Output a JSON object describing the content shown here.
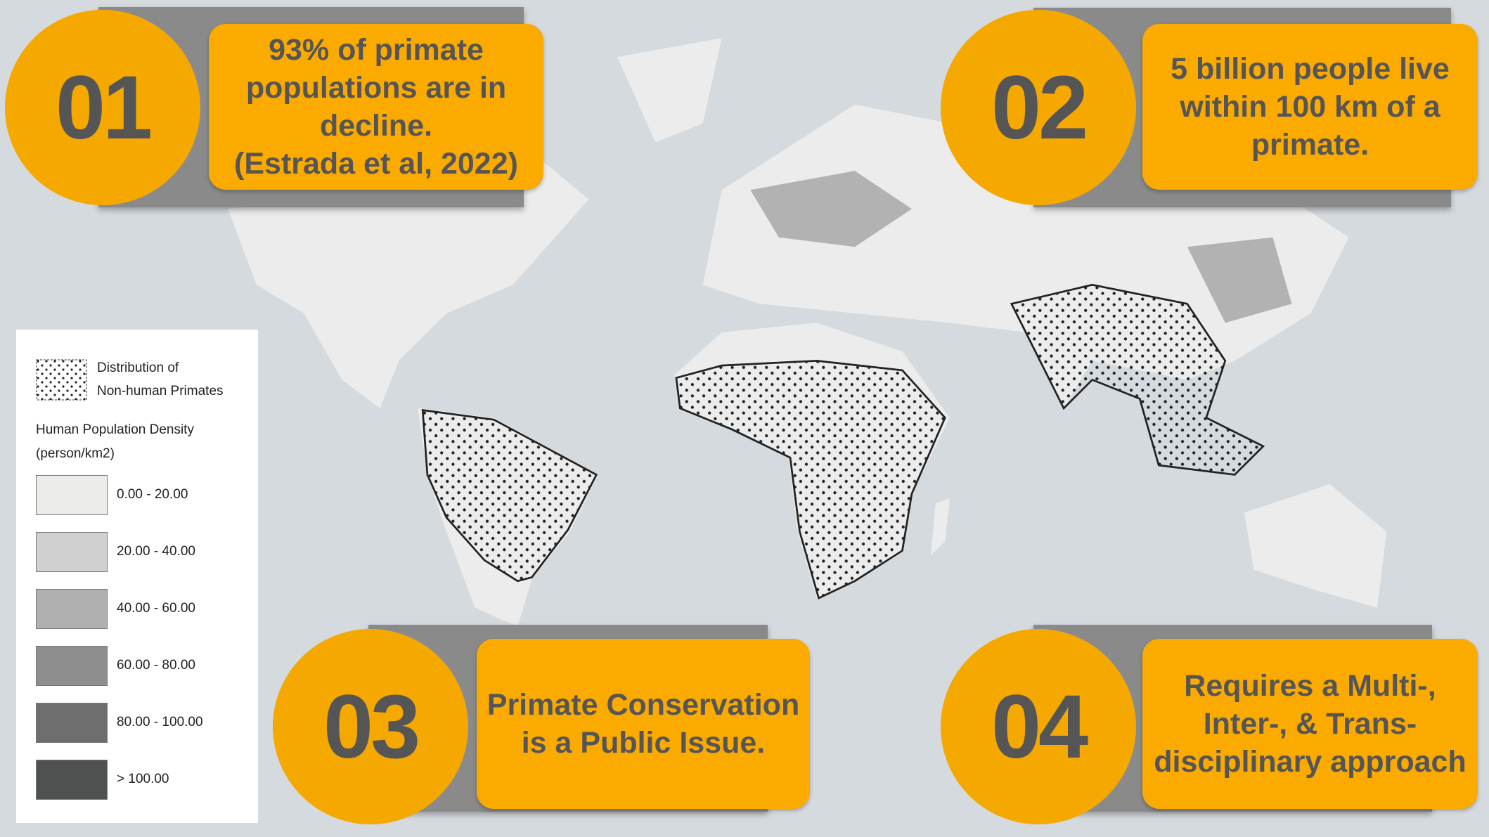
{
  "cards": [
    {
      "number": "01",
      "lines": [
        "93% of primate",
        "populations are in",
        "decline.",
        "(Estrada et al, 2022)"
      ]
    },
    {
      "number": "02",
      "lines": [
        "5 billion people live",
        "within 100 km of a",
        "primate."
      ]
    },
    {
      "number": "03",
      "lines": [
        "Primate Conservation",
        "is a Public Issue."
      ]
    },
    {
      "number": "04",
      "lines": [
        "Requires a Multi-,",
        "Inter-, & Trans-",
        "disciplinary approach"
      ]
    }
  ],
  "legend": {
    "distribution": [
      "Distribution of",
      "Non-human Primates"
    ],
    "density_title": [
      "Human Population Density",
      "(person/km2)"
    ],
    "items": [
      {
        "label": "0.00 - 20.00",
        "color": "#ececea"
      },
      {
        "label": "20.00 - 40.00",
        "color": "#d0d0d0"
      },
      {
        "label": "40.00 - 60.00",
        "color": "#b0b0b0"
      },
      {
        "label": "60.00 - 80.00",
        "color": "#8e8e8e"
      },
      {
        "label": "80.00 - 100.00",
        "color": "#6e6e6e"
      },
      {
        "label": "> 100.00",
        "color": "#4f5050"
      }
    ]
  }
}
